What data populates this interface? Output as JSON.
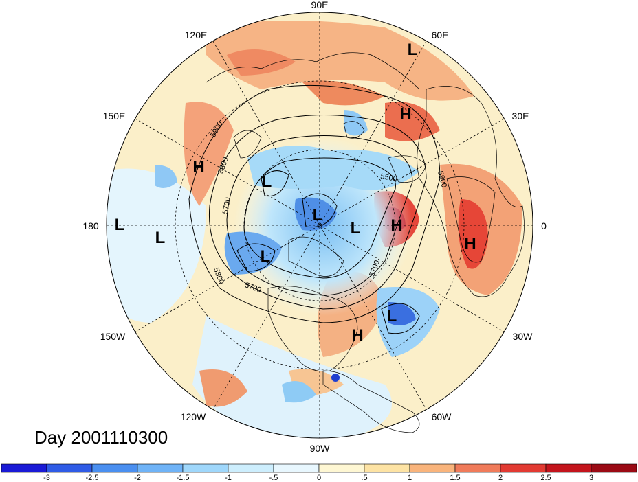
{
  "day_label": "Day 2001110300",
  "longitude_labels": [
    {
      "id": "lon-90e",
      "text": "90E"
    },
    {
      "id": "lon-60e",
      "text": "60E"
    },
    {
      "id": "lon-120e",
      "text": "120E"
    },
    {
      "id": "lon-30e",
      "text": "30E"
    },
    {
      "id": "lon-150e",
      "text": "150E"
    },
    {
      "id": "lon-0",
      "text": "0"
    },
    {
      "id": "lon-180",
      "text": "180"
    },
    {
      "id": "lon-30w",
      "text": "30W"
    },
    {
      "id": "lon-150w",
      "text": "150W"
    },
    {
      "id": "lon-60w",
      "text": "60W"
    },
    {
      "id": "lon-120w",
      "text": "120W"
    },
    {
      "id": "lon-90w",
      "text": "90W"
    }
  ],
  "contour_labels": [
    "5900",
    "5800",
    "5700",
    "5500",
    "5800",
    "5700",
    "5800",
    "5700",
    "5700"
  ],
  "pressure_centers": [
    "L",
    "H",
    "H",
    "L",
    "L",
    "L",
    "L",
    "H",
    "L",
    "H",
    "L",
    "H",
    "L"
  ],
  "colorbar": {
    "ticks": [
      "-3",
      "-2.5",
      "-2",
      "-1.5",
      "-1",
      "-.5",
      "0",
      ".5",
      "1",
      "1.5",
      "2",
      "2.5",
      "3"
    ],
    "colors": [
      "#1a1ad6",
      "#2f5be6",
      "#4a8ff0",
      "#6fb3f7",
      "#9fd7fb",
      "#cdeefd",
      "#e8f7fe",
      "#fef7d3",
      "#fde3a4",
      "#f9b47c",
      "#f07b5a",
      "#e23a32",
      "#c3141c",
      "#9a0a14"
    ]
  }
}
